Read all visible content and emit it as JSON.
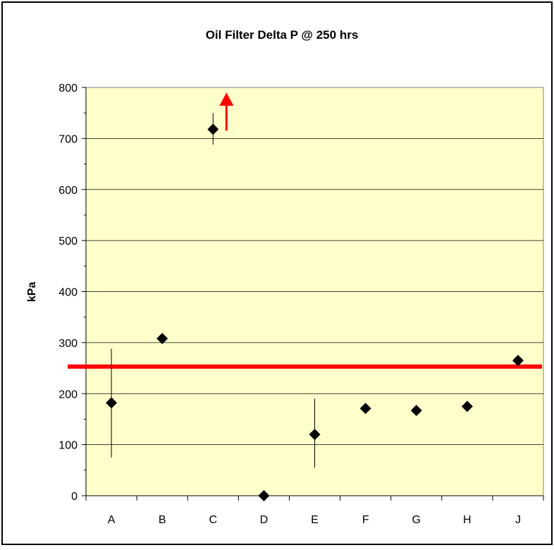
{
  "chart_data": {
    "type": "scatter",
    "title": "Oil Filter Delta P  @ 250 hrs",
    "ylabel": "kPa",
    "xlabel": "",
    "categories": [
      "A",
      "B",
      "C",
      "D",
      "E",
      "F",
      "G",
      "H",
      "J"
    ],
    "values": [
      182,
      308,
      718,
      0,
      120,
      171,
      167,
      175,
      265
    ],
    "error_ranges": [
      [
        75,
        288
      ],
      null,
      [
        688,
        750
      ],
      null,
      [
        55,
        190
      ],
      null,
      null,
      null,
      null
    ],
    "ylim": [
      0,
      800
    ],
    "yticks": [
      "0",
      "100",
      "200",
      "300",
      "400",
      "500",
      "600",
      "700",
      "800"
    ],
    "reference_line": {
      "value": 253,
      "color": "#ff0000"
    },
    "arrow": {
      "category": "C",
      "direction": "up",
      "color": "#ff0000"
    },
    "plot_background": "#ffffcc",
    "grid": true,
    "marker": "diamond",
    "marker_color": "#000000"
  }
}
